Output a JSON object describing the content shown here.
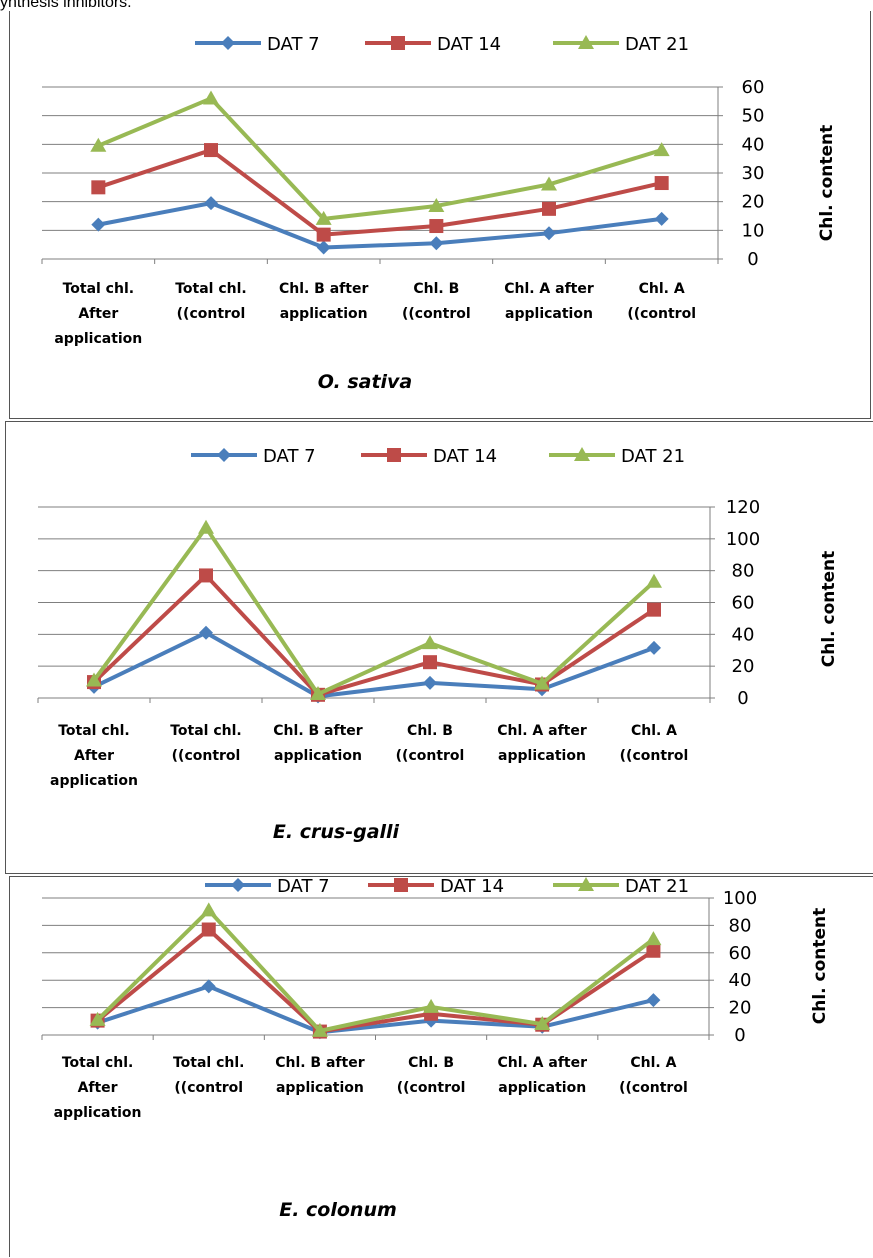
{
  "header": {
    "text": "ynthesis inhibitors."
  },
  "colors": {
    "dat7": "#4a7ebb",
    "dat14": "#be4b48",
    "dat21": "#98b954",
    "grid": "#7f7f7f",
    "frame": "#7f7f7f"
  },
  "chart_data": [
    {
      "type": "line",
      "title": "O. sativa",
      "ylabel": "Chl. content",
      "ylim": [
        0,
        60
      ],
      "yticks": [
        0,
        10,
        20,
        30,
        40,
        50,
        60
      ],
      "categories": [
        [
          "Total chl.",
          "After",
          "application"
        ],
        [
          "Total chl.",
          "((control"
        ],
        [
          "Chl. B after",
          "application"
        ],
        [
          "Chl. B",
          "((control"
        ],
        [
          "Chl. A after",
          "application"
        ],
        [
          "Chl. A",
          "((control"
        ]
      ],
      "series": [
        {
          "name": "DAT 7",
          "marker": "diamond",
          "values": [
            12,
            19.5,
            4,
            5.5,
            9,
            14
          ]
        },
        {
          "name": "DAT 14",
          "marker": "square",
          "values": [
            25,
            38,
            8.5,
            11.5,
            17.5,
            26.5
          ]
        },
        {
          "name": "DAT 21",
          "marker": "triangle",
          "values": [
            39.5,
            56,
            14,
            18.5,
            26,
            38
          ]
        }
      ],
      "legend": "top",
      "grid": true
    },
    {
      "type": "line",
      "title": "E. crus-galli",
      "ylabel": "Chl. content",
      "ylim": [
        0,
        120
      ],
      "yticks": [
        0,
        20,
        40,
        60,
        80,
        100,
        120
      ],
      "categories": [
        [
          "Total chl.",
          "After",
          "application"
        ],
        [
          "Total chl.",
          "((control"
        ],
        [
          "Chl. B after",
          "application"
        ],
        [
          "Chl. B",
          "((control"
        ],
        [
          "Chl. A after",
          "application"
        ],
        [
          "Chl. A",
          "((control"
        ]
      ],
      "series": [
        {
          "name": "DAT 7",
          "marker": "diamond",
          "values": [
            7,
            41,
            1,
            9.5,
            5.5,
            31.5
          ]
        },
        {
          "name": "DAT 14",
          "marker": "square",
          "values": [
            10,
            77,
            2,
            22.5,
            8.5,
            55.5
          ]
        },
        {
          "name": "DAT 21",
          "marker": "triangle",
          "values": [
            11,
            107,
            2.5,
            34.5,
            9,
            73
          ]
        }
      ],
      "legend": "top",
      "grid": true
    },
    {
      "type": "line",
      "title": "E. colonum",
      "ylabel": "Chl. content",
      "ylim": [
        0,
        100
      ],
      "yticks": [
        0,
        20,
        40,
        60,
        80,
        100
      ],
      "categories": [
        [
          "Total chl.",
          "After",
          "application"
        ],
        [
          "Total chl.",
          "((control"
        ],
        [
          "Chl. B after",
          "application"
        ],
        [
          "Chl. B",
          "((control"
        ],
        [
          "Chl. A after",
          "application"
        ],
        [
          "Chl. A",
          "((control"
        ]
      ],
      "series": [
        {
          "name": "DAT 7",
          "marker": "diamond",
          "values": [
            9,
            35.5,
            2,
            10.5,
            6,
            25.5
          ]
        },
        {
          "name": "DAT 14",
          "marker": "square",
          "values": [
            10.5,
            77,
            2.5,
            15.5,
            7.5,
            61.5
          ]
        },
        {
          "name": "DAT 21",
          "marker": "triangle",
          "values": [
            11,
            91,
            3,
            20.5,
            8,
            70
          ]
        }
      ],
      "legend": "top",
      "grid": true
    }
  ]
}
